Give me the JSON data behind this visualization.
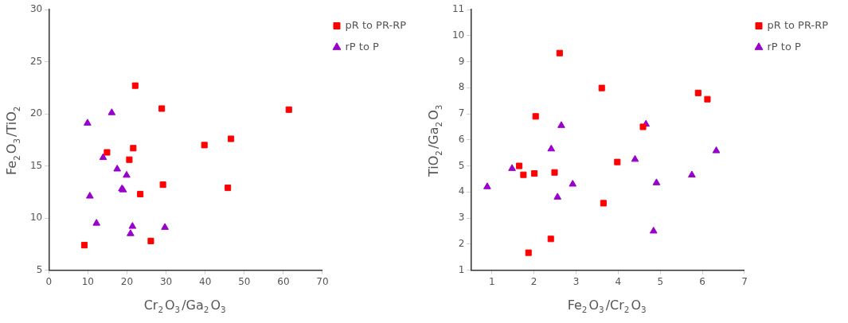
{
  "chart_data": [
    {
      "type": "scatter",
      "xlabel": "Cr$_{2}$O$_{3}$/Ga$_{2}$O$_{3}$",
      "ylabel": "Fe$_{2}$O$_{3}$/TiO$_{2}$",
      "xlim": [
        0,
        70
      ],
      "ylim": [
        5,
        30
      ],
      "xticks": [
        0,
        10,
        20,
        30,
        40,
        50,
        60,
        70
      ],
      "yticks": [
        5,
        10,
        15,
        20,
        25,
        30
      ],
      "grid": false,
      "legend": "top right",
      "series": [
        {
          "name": "pR to PR-RP",
          "color": "#ff0000",
          "marker": "square",
          "x": [
            22.1,
            28.9,
            61.4,
            46.6,
            39.8,
            21.6,
            14.9,
            20.6,
            29.2,
            45.8,
            23.4,
            26.1,
            9.1
          ],
          "values": [
            22.7,
            20.5,
            20.4,
            17.6,
            17.0,
            16.7,
            16.3,
            15.6,
            13.2,
            12.9,
            12.3,
            7.8,
            7.4
          ]
        },
        {
          "name": "rP to P",
          "color": "#9900cc",
          "marker": "triangle",
          "x": [
            9.9,
            16.1,
            13.9,
            17.5,
            19.9,
            18.7,
            19.0,
            10.5,
            12.2,
            21.4,
            20.9,
            29.7
          ],
          "values": [
            19.1,
            20.1,
            15.8,
            14.7,
            14.1,
            12.8,
            12.7,
            12.1,
            9.5,
            9.2,
            8.5,
            9.1
          ]
        }
      ]
    },
    {
      "type": "scatter",
      "xlabel": "Fe$_{2}$O$_{3}$/Cr$_{2}$O$_{3}$",
      "ylabel": "TiO$_{2}$/Ga$_{2}$O$_{3}$",
      "xlim": [
        0.5,
        7
      ],
      "ylim": [
        1,
        11
      ],
      "xticks": [
        1,
        2,
        3,
        4,
        5,
        6,
        7
      ],
      "yticks": [
        1,
        2,
        3,
        4,
        5,
        6,
        7,
        8,
        9,
        10,
        11
      ],
      "grid": false,
      "legend": "top right",
      "series": [
        {
          "name": "pR to PR-RP",
          "color": "#ff0000",
          "marker": "square",
          "x": [
            2.61,
            3.61,
            5.9,
            6.12,
            2.04,
            4.59,
            1.65,
            1.75,
            2.01,
            2.49,
            3.98,
            3.65,
            2.4,
            1.87
          ],
          "values": [
            9.33,
            7.99,
            7.8,
            7.56,
            6.9,
            6.5,
            5.0,
            4.66,
            4.71,
            4.75,
            5.15,
            3.57,
            2.2,
            1.67
          ]
        },
        {
          "name": "rP to P",
          "color": "#9900cc",
          "marker": "triangle",
          "x": [
            0.89,
            1.48,
            2.41,
            2.65,
            2.56,
            2.92,
            4.4,
            4.66,
            4.91,
            4.84,
            5.75,
            6.33
          ],
          "values": [
            4.2,
            4.9,
            5.65,
            6.55,
            3.8,
            4.3,
            5.25,
            6.6,
            4.35,
            2.5,
            4.65,
            5.58
          ]
        }
      ]
    }
  ]
}
